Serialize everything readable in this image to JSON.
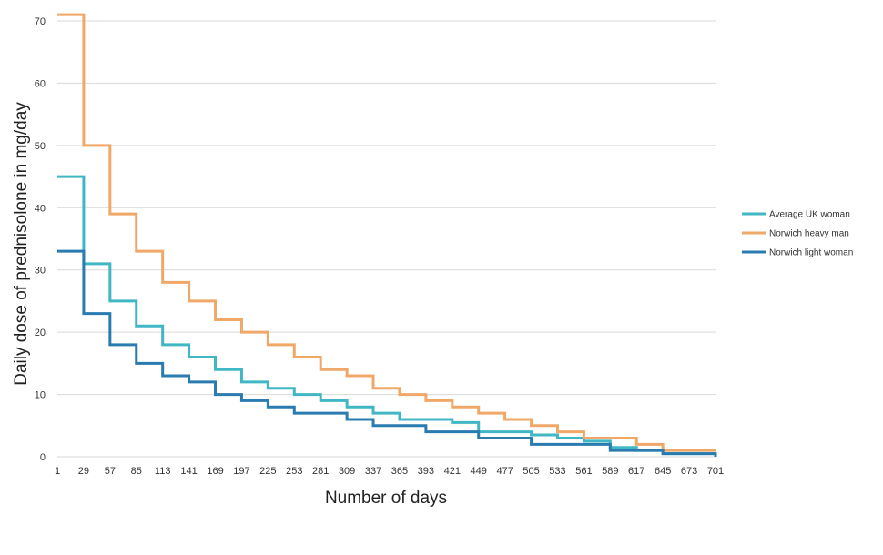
{
  "chart_data": {
    "type": "line",
    "step": true,
    "title": "",
    "xlabel": "Number of days",
    "ylabel": "Daily dose of prednisolone in mg/day",
    "xlim": [
      1,
      701
    ],
    "ylim": [
      0,
      70
    ],
    "y_ticks": [
      0,
      10,
      20,
      30,
      40,
      50,
      60,
      70
    ],
    "x_ticks": [
      1,
      29,
      57,
      85,
      113,
      141,
      169,
      197,
      225,
      253,
      281,
      309,
      337,
      365,
      393,
      421,
      449,
      477,
      505,
      533,
      561,
      589,
      617,
      645,
      673,
      701
    ],
    "grid": true,
    "legend_position": "right",
    "x": [
      1,
      29,
      57,
      85,
      113,
      141,
      169,
      197,
      225,
      253,
      281,
      309,
      337,
      365,
      393,
      421,
      449,
      477,
      505,
      533,
      561,
      589,
      617,
      645,
      673,
      701
    ],
    "series": [
      {
        "name": "Average UK woman",
        "color": "#41b6c4",
        "values": [
          45,
          31,
          25,
          21,
          18,
          16,
          14,
          12,
          11,
          10,
          9,
          8,
          7,
          6,
          6,
          5.5,
          4,
          4,
          3.5,
          3,
          2.5,
          1.5,
          1,
          0.5,
          0.5,
          0.5
        ]
      },
      {
        "name": "Norwich heavy man",
        "color": "#f0a868",
        "values": [
          71,
          50,
          39,
          33,
          28,
          25,
          22,
          20,
          18,
          16,
          14,
          13,
          11,
          10,
          9,
          8,
          7,
          6,
          5,
          4,
          3,
          3,
          2,
          1,
          1,
          1
        ]
      },
      {
        "name": "Norwich light woman",
        "color": "#2a7bb0",
        "values": [
          33,
          23,
          18,
          15,
          13,
          12,
          10,
          9,
          8,
          7,
          7,
          6,
          5,
          5,
          4,
          4,
          3,
          3,
          2,
          2,
          2,
          1,
          1,
          0.5,
          0.5,
          0
        ]
      }
    ]
  }
}
